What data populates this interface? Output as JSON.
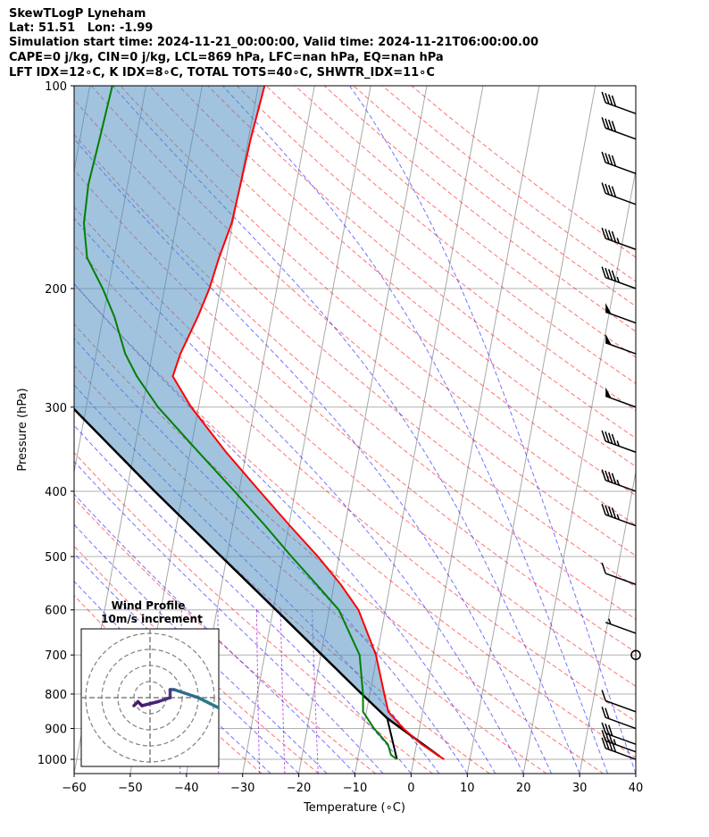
{
  "header": {
    "line1": "SkewTLogP Lyneham",
    "line2": "Lat: 51.51   Lon: -1.99",
    "line3": "Simulation start time: 2024-11-21_00:00:00, Valid time: 2024-11-21T06:00:00.00",
    "line4": "CAPE=0 j/kg, CIN=0 j/kg, LCL=869 hPa, LFC=nan hPa, EQ=nan hPa",
    "line5": "LFT IDX=12∘C, K IDX=8∘C, TOTAL TOTS=40∘C, SHWTR_IDX=11∘C"
  },
  "chart_data": {
    "type": "line",
    "subtype": "skew-t log-p",
    "xlabel": "Temperature (∘C)",
    "ylabel": "Pressure (hPa)",
    "xlim": [
      -60,
      40
    ],
    "ylim": [
      1050,
      100
    ],
    "y_scale": "log",
    "grid": true,
    "x_ticks": [
      "−60",
      "−50",
      "−40",
      "−30",
      "−20",
      "−10",
      "0",
      "10",
      "20",
      "30",
      "40"
    ],
    "y_ticks": [
      "100",
      "200",
      "300",
      "400",
      "500",
      "600",
      "700",
      "800",
      "900",
      "1000"
    ],
    "series": [
      {
        "role": "temperature",
        "color": "#ff0000",
        "points": [
          [
            1000,
            5.4
          ],
          [
            990,
            4.5
          ],
          [
            950,
            0.9
          ],
          [
            900,
            -2.9
          ],
          [
            850,
            -6.1
          ],
          [
            800,
            -7.4
          ],
          [
            700,
            -10.2
          ],
          [
            600,
            -14.8
          ],
          [
            550,
            -18.8
          ],
          [
            500,
            -23.8
          ],
          [
            450,
            -29.8
          ],
          [
            400,
            -36.3
          ],
          [
            350,
            -43.6
          ],
          [
            300,
            -51.3
          ],
          [
            270,
            -55.6
          ],
          [
            250,
            -55.0
          ],
          [
            220,
            -53.1
          ],
          [
            200,
            -52.0
          ],
          [
            180,
            -51.3
          ],
          [
            160,
            -50.2
          ],
          [
            140,
            -49.9
          ],
          [
            120,
            -49.6
          ],
          [
            100,
            -48.9
          ]
        ]
      },
      {
        "role": "dewpoint",
        "color": "#008000",
        "points": [
          [
            1000,
            -3.0
          ],
          [
            985,
            -4.2
          ],
          [
            950,
            -5.1
          ],
          [
            900,
            -8.1
          ],
          [
            850,
            -10.6
          ],
          [
            800,
            -11.2
          ],
          [
            700,
            -13.1
          ],
          [
            600,
            -18.3
          ],
          [
            550,
            -23.1
          ],
          [
            500,
            -28.5
          ],
          [
            450,
            -34.2
          ],
          [
            400,
            -40.8
          ],
          [
            350,
            -48.5
          ],
          [
            300,
            -57.2
          ],
          [
            270,
            -62.0
          ],
          [
            250,
            -64.8
          ],
          [
            220,
            -68.0
          ],
          [
            200,
            -71.0
          ],
          [
            180,
            -74.8
          ],
          [
            160,
            -76.5
          ],
          [
            140,
            -77.0
          ],
          [
            120,
            -76.5
          ],
          [
            100,
            -76.0
          ]
        ]
      },
      {
        "role": "parcel",
        "color": "#000000",
        "points": [
          [
            990,
            4.5
          ],
          [
            869,
            -6.1
          ],
          [
            800,
            -11.4
          ],
          [
            700,
            -19.8
          ],
          [
            600,
            -29.5
          ],
          [
            500,
            -41.0
          ],
          [
            400,
            -55.0
          ],
          [
            300,
            -72.5
          ],
          [
            200,
            -96.0
          ],
          [
            150,
            -111.0
          ],
          [
            100,
            -131.0
          ]
        ]
      }
    ],
    "surface_dewpoint_line": [
      [
        1000,
        -3.0
      ],
      [
        869,
        -6.1
      ]
    ],
    "shading": "cape/cin area between parcel and temperature",
    "wind_barbs_speed_kt": [
      {
        "p": 1000,
        "spd": 40
      },
      {
        "p": 975,
        "spd": 35
      },
      {
        "p": 950,
        "spd": 30
      },
      {
        "p": 900,
        "spd": 20
      },
      {
        "p": 850,
        "spd": 10
      },
      {
        "p": 700,
        "spd": 0
      },
      {
        "p": 650,
        "spd": 5
      },
      {
        "p": 550,
        "spd": 10
      },
      {
        "p": 450,
        "spd": 45
      },
      {
        "p": 400,
        "spd": 45
      },
      {
        "p": 350,
        "spd": 45
      },
      {
        "p": 300,
        "spd": 50
      },
      {
        "p": 250,
        "spd": 50
      },
      {
        "p": 225,
        "spd": 50
      },
      {
        "p": 200,
        "spd": 45
      },
      {
        "p": 175,
        "spd": 45
      },
      {
        "p": 150,
        "spd": 40
      },
      {
        "p": 135,
        "spd": 40
      },
      {
        "p": 120,
        "spd": 40
      },
      {
        "p": 110,
        "spd": 40
      }
    ],
    "inset": {
      "title": "Wind Profile",
      "subtitle": "10m/s increment",
      "hodograph_uv": [
        [
          11,
          2.5
        ],
        [
          6,
          0
        ],
        [
          3,
          -1
        ],
        [
          2.5,
          -1
        ],
        [
          2.5,
          0
        ],
        [
          1,
          0.5
        ],
        [
          -1,
          1
        ],
        [
          -1.5,
          0.5
        ],
        [
          -2,
          1
        ]
      ]
    }
  }
}
